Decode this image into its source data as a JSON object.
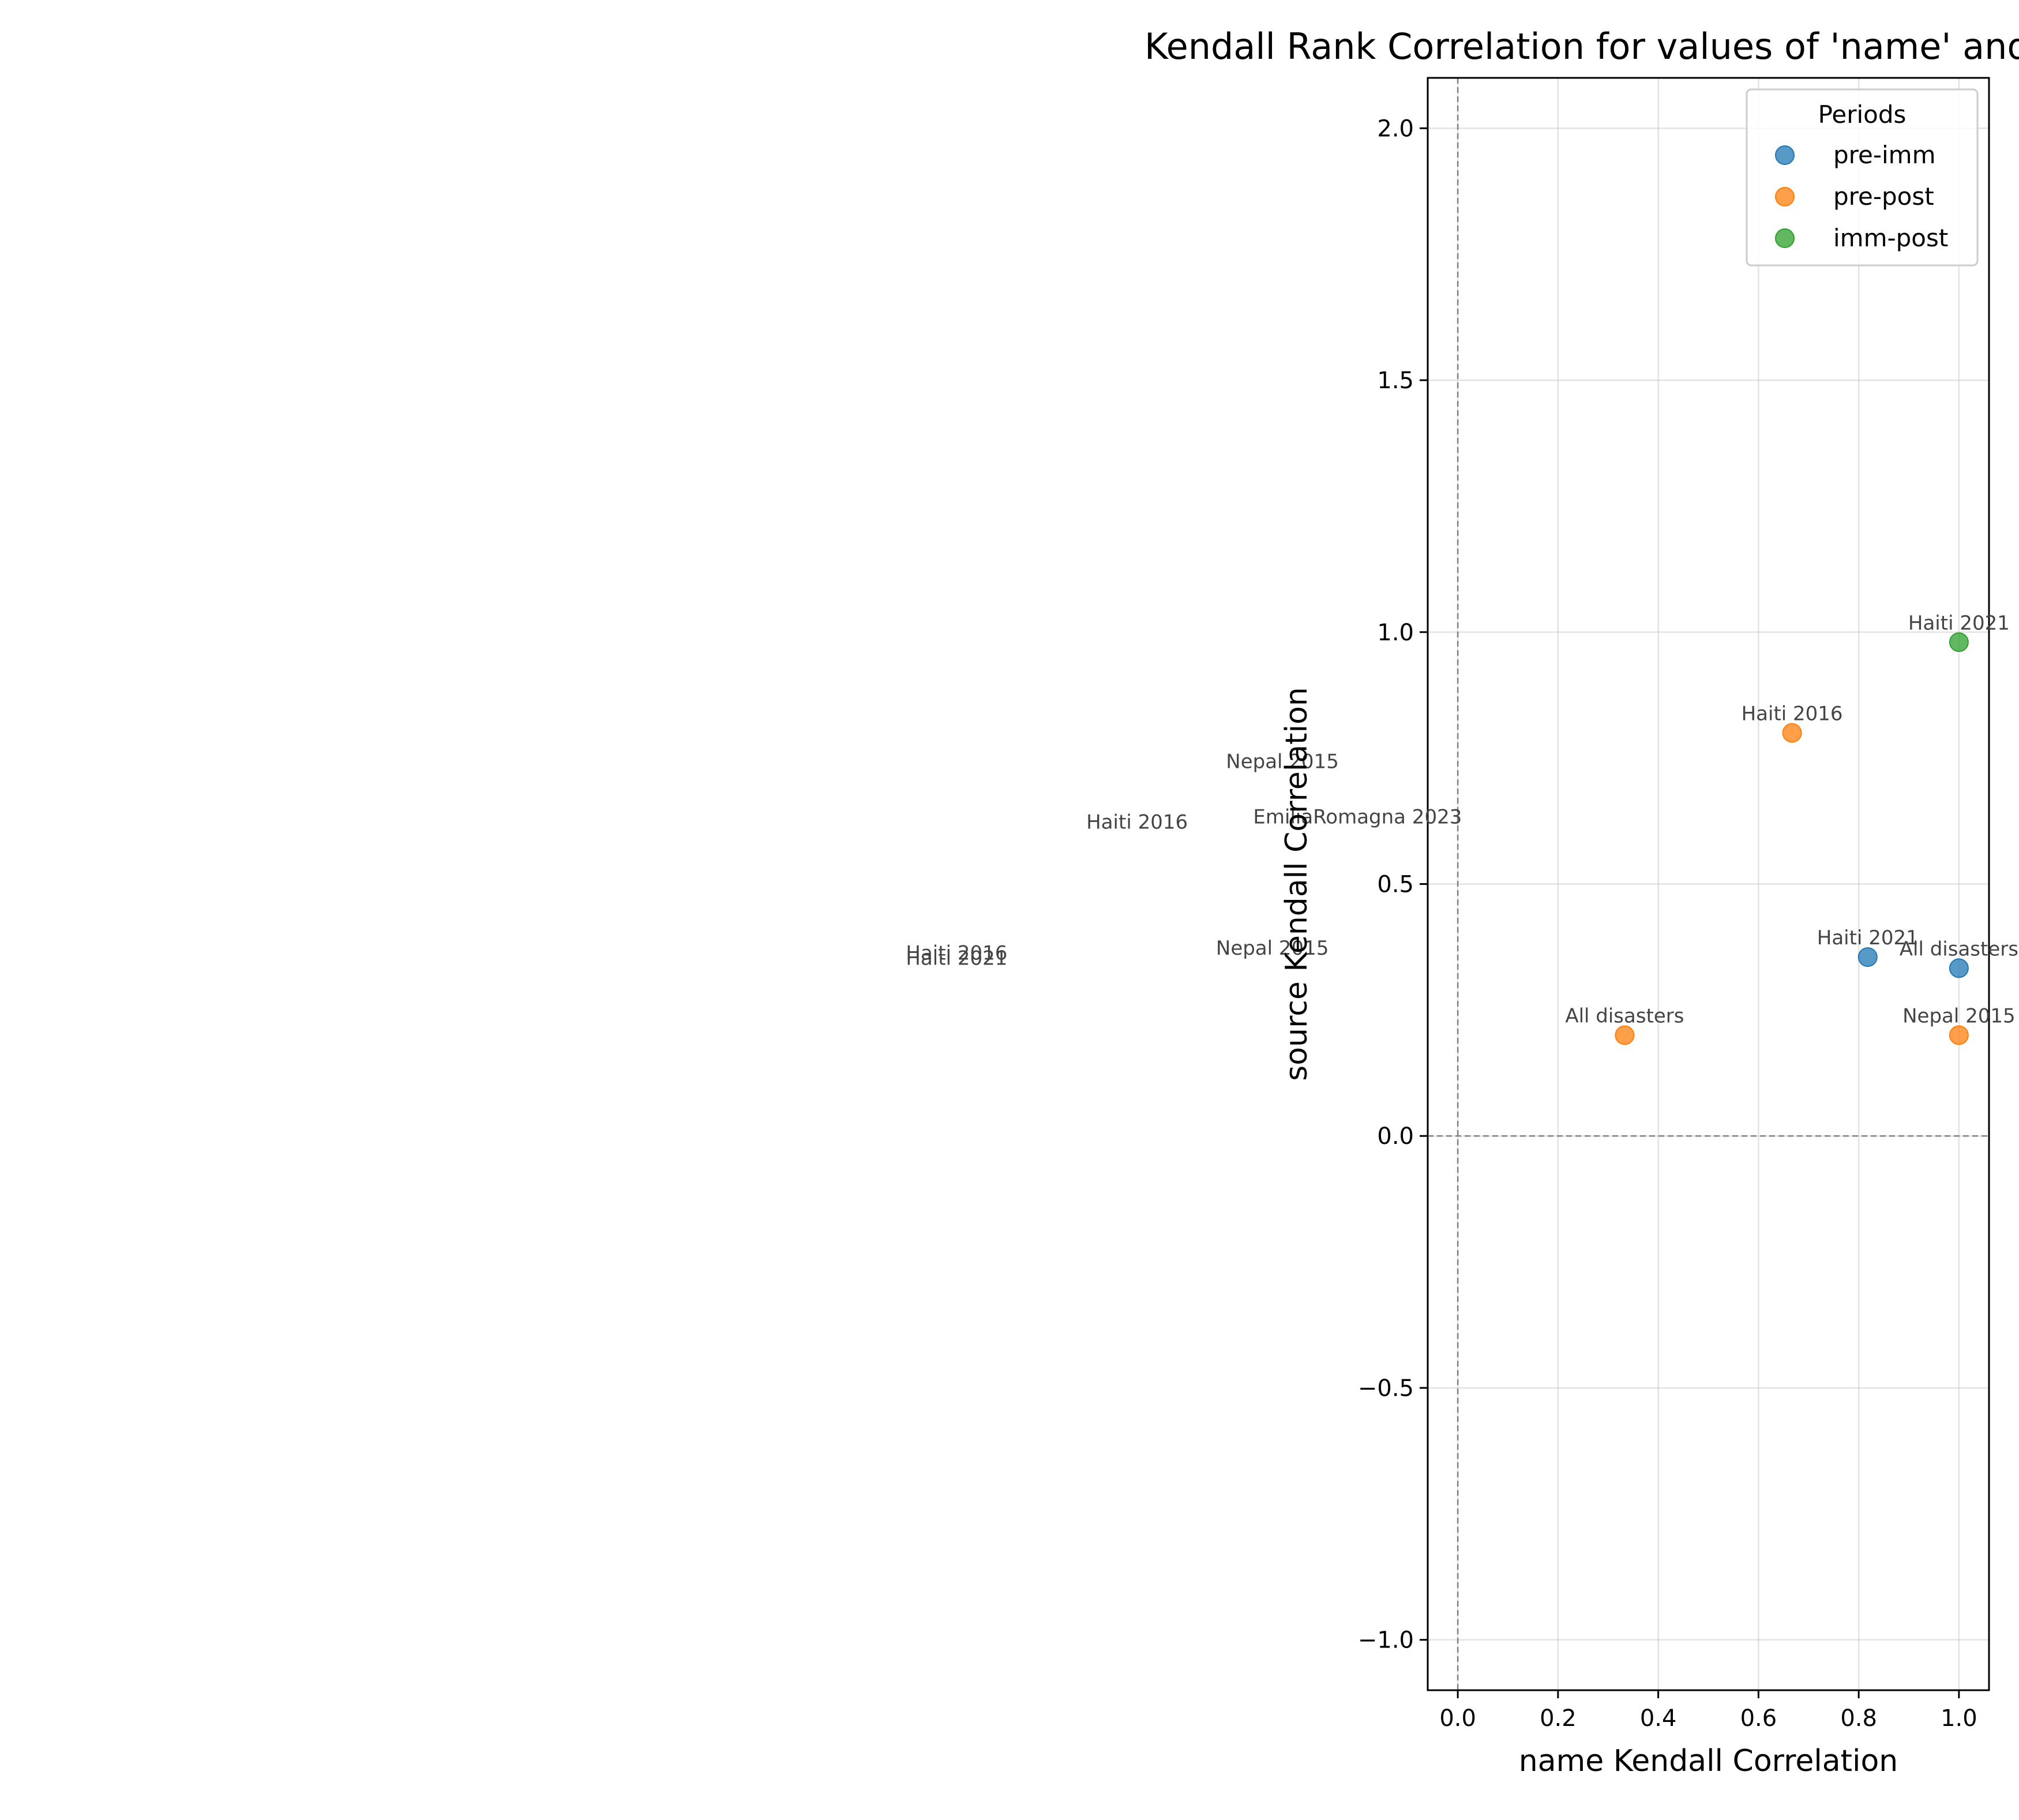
{
  "chart_data": {
    "type": "scatter",
    "title": "Kendall Rank Correlation for values of 'name' and 'source' keys",
    "xlabel": "name Kendall Correlation",
    "ylabel": "source Kendall Correlation",
    "xlim": [
      -0.06,
      1.06
    ],
    "ylim": [
      -1.1,
      2.1
    ],
    "xticks": [
      0.0,
      0.2,
      0.4,
      0.6,
      0.8,
      1.0
    ],
    "xtick_labels": [
      "0.0",
      "0.2",
      "0.4",
      "0.6",
      "0.8",
      "1.0"
    ],
    "yticks": [
      -1.0,
      -0.5,
      0.0,
      0.5,
      1.0,
      1.5,
      2.0
    ],
    "ytick_labels": [
      "−1.0",
      "−0.5",
      "0.0",
      "0.5",
      "1.0",
      "1.5",
      "2.0"
    ],
    "grid": true,
    "reference_lines": {
      "x": 0,
      "y": 0
    },
    "legend": {
      "title": "Periods",
      "position": "top-right"
    },
    "series": [
      {
        "name": "pre-imm",
        "color": "#1f77b4",
        "points": [
          {
            "x": 0.818,
            "y": 0.355,
            "label": "Haiti 2021"
          },
          {
            "x": 1.0,
            "y": 0.333,
            "label": "All disasters"
          }
        ]
      },
      {
        "name": "pre-post",
        "color": "#ff7f0e",
        "points": [
          {
            "x": 0.333,
            "y": 0.2,
            "label": "All disasters"
          },
          {
            "x": 0.667,
            "y": 0.8,
            "label": "Haiti 2016"
          },
          {
            "x": 1.0,
            "y": 0.2,
            "label": "Nepal 2015"
          }
        ]
      },
      {
        "name": "imm-post",
        "color": "#2ca02c",
        "points": [
          {
            "x": 1.0,
            "y": 0.98,
            "label": "Haiti 2021"
          }
        ]
      }
    ],
    "stray_labels": [
      {
        "text": "Nepal 2015",
        "x": -0.35,
        "y": 0.73
      },
      {
        "text": "EmiliaRomagna 2023",
        "x": -0.2,
        "y": 0.62
      },
      {
        "text": "Haiti 2016",
        "x": -0.64,
        "y": 0.61
      },
      {
        "text": "Nepal 2015",
        "x": -0.37,
        "y": 0.36
      },
      {
        "text": "Haiti 2016",
        "x": -1.0,
        "y": 0.35
      },
      {
        "text": "Haiti 2021",
        "x": -1.0,
        "y": 0.34
      }
    ]
  }
}
